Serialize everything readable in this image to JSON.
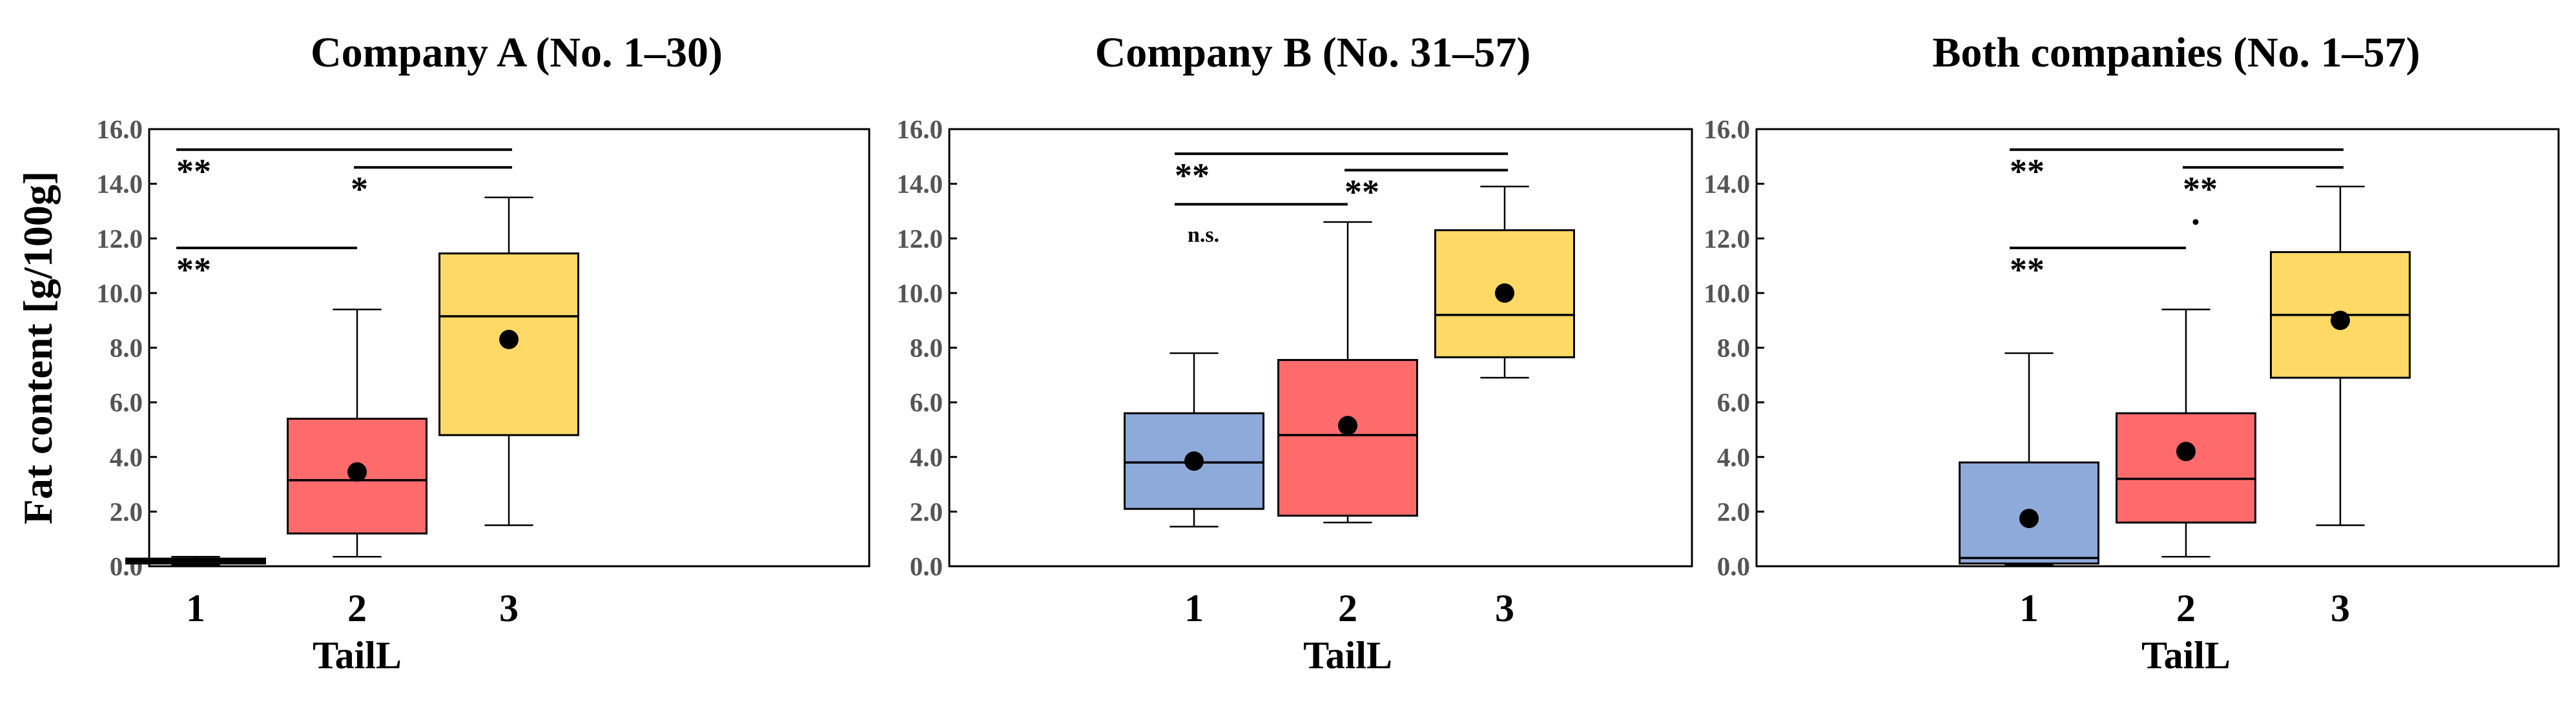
{
  "figure": {
    "ylabel": "Fat content [g/100g]"
  },
  "chart_data": [
    {
      "type": "box",
      "title": "Company A (No. 1–30)",
      "xlabel": "TailL",
      "ylabel": "Fat content [g/100g]",
      "ylim": [
        0,
        16
      ],
      "yticks": [
        "0.0",
        "2.0",
        "4.0",
        "6.0",
        "8.0",
        "10.0",
        "12.0",
        "14.0",
        "16.0"
      ],
      "grid": false,
      "categories": [
        "1",
        "2",
        "3"
      ],
      "boxes": [
        {
          "category": "1",
          "min": 0.05,
          "q1": 0.1,
          "median": 0.2,
          "q3": 0.28,
          "max": 0.35,
          "mean": 0.2,
          "color": "#111111"
        },
        {
          "category": "2",
          "min": 0.35,
          "q1": 1.2,
          "median": 3.15,
          "q3": 5.4,
          "max": 9.4,
          "mean": 3.45,
          "color": "#ff6b6b"
        },
        {
          "category": "3",
          "min": 1.5,
          "q1": 4.8,
          "median": 9.15,
          "q3": 11.45,
          "max": 13.5,
          "mean": 8.3,
          "color": "#ffd966"
        }
      ],
      "significance": [
        {
          "from": "1",
          "to": "3",
          "label": "**",
          "y": 15.25
        },
        {
          "from": "2",
          "to": "3",
          "label": "*",
          "y": 14.6
        },
        {
          "from": "1",
          "to": "2",
          "label": "**",
          "y": 11.65
        }
      ],
      "outliers": []
    },
    {
      "type": "box",
      "title": "Company B (No. 31–57)",
      "xlabel": "TailL",
      "ylabel": "",
      "ylim": [
        0,
        16
      ],
      "yticks": [
        "0.0",
        "2.0",
        "4.0",
        "6.0",
        "8.0",
        "10.0",
        "12.0",
        "14.0",
        "16.0"
      ],
      "grid": false,
      "categories": [
        "1",
        "2",
        "3"
      ],
      "boxes": [
        {
          "category": "1",
          "min": 1.45,
          "q1": 2.1,
          "median": 3.8,
          "q3": 5.6,
          "max": 7.8,
          "mean": 3.85,
          "color": "#8eaadb"
        },
        {
          "category": "2",
          "min": 1.6,
          "q1": 1.85,
          "median": 4.8,
          "q3": 7.55,
          "max": 12.6,
          "mean": 5.15,
          "color": "#ff6b6b"
        },
        {
          "category": "3",
          "min": 6.9,
          "q1": 7.65,
          "median": 9.2,
          "q3": 12.3,
          "max": 13.9,
          "mean": 10.0,
          "color": "#ffd966"
        }
      ],
      "significance": [
        {
          "from": "1",
          "to": "3",
          "label": "**",
          "y": 15.1
        },
        {
          "from": "2",
          "to": "3",
          "label": "**",
          "y": 14.5
        },
        {
          "from": "1",
          "to": "2",
          "label": "n.s.",
          "y": 13.25
        }
      ],
      "outliers": []
    },
    {
      "type": "box",
      "title": "Both companies (No. 1–57)",
      "xlabel": "TailL",
      "ylabel": "",
      "ylim": [
        0,
        16
      ],
      "yticks": [
        "0.0",
        "2.0",
        "4.0",
        "6.0",
        "8.0",
        "10.0",
        "12.0",
        "14.0",
        "16.0"
      ],
      "grid": false,
      "categories": [
        "1",
        "2",
        "3"
      ],
      "boxes": [
        {
          "category": "1",
          "min": 0.05,
          "q1": 0.1,
          "median": 0.3,
          "q3": 3.8,
          "max": 7.8,
          "mean": 1.75,
          "color": "#8eaadb"
        },
        {
          "category": "2",
          "min": 0.35,
          "q1": 1.6,
          "median": 3.2,
          "q3": 5.6,
          "max": 9.4,
          "mean": 4.2,
          "color": "#ff6b6b"
        },
        {
          "category": "3",
          "min": 1.5,
          "q1": 6.9,
          "median": 9.2,
          "q3": 11.5,
          "max": 13.9,
          "mean": 9.0,
          "color": "#ffd966"
        }
      ],
      "significance": [
        {
          "from": "1",
          "to": "3",
          "label": "**",
          "y": 15.25
        },
        {
          "from": "2",
          "to": "3",
          "label": "**",
          "y": 14.6
        },
        {
          "from": "1",
          "to": "2",
          "label": "**",
          "y": 11.65
        }
      ],
      "outliers": [
        {
          "category": "2",
          "value": 12.6
        }
      ]
    }
  ]
}
